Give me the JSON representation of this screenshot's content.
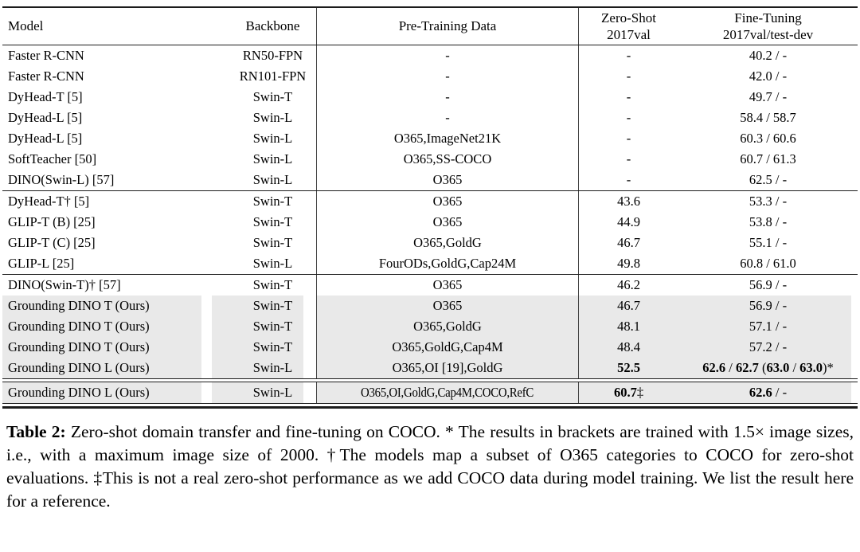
{
  "colors": {
    "row_highlight": "#e9e9e9"
  },
  "table": {
    "header": {
      "model": "Model",
      "backbone": "Backbone",
      "pretraining": "Pre-Training Data",
      "zero_shot_line1": "Zero-Shot",
      "zero_shot_line2": "2017val",
      "fine_tuning_line1": "Fine-Tuning",
      "fine_tuning_line2": "2017val/test-dev"
    },
    "groups": [
      {
        "rows": [
          {
            "model": "Faster R-CNN",
            "backbone": "RN50-FPN",
            "pretraining": "-",
            "zero_shot": [
              {
                "t": "-"
              }
            ],
            "fine_tuning": [
              {
                "t": "40.2 / -"
              }
            ],
            "highlight": false
          },
          {
            "model": "Faster R-CNN",
            "backbone": "RN101-FPN",
            "pretraining": "-",
            "zero_shot": [
              {
                "t": "-"
              }
            ],
            "fine_tuning": [
              {
                "t": "42.0 / -"
              }
            ],
            "highlight": false
          },
          {
            "model": "DyHead-T [5]",
            "backbone": "Swin-T",
            "pretraining": "-",
            "zero_shot": [
              {
                "t": "-"
              }
            ],
            "fine_tuning": [
              {
                "t": "49.7 / -"
              }
            ],
            "highlight": false
          },
          {
            "model": "DyHead-L [5]",
            "backbone": "Swin-L",
            "pretraining": "-",
            "zero_shot": [
              {
                "t": "-"
              }
            ],
            "fine_tuning": [
              {
                "t": "58.4 / 58.7"
              }
            ],
            "highlight": false
          },
          {
            "model": "DyHead-L [5]",
            "backbone": "Swin-L",
            "pretraining": "O365,ImageNet21K",
            "zero_shot": [
              {
                "t": "-"
              }
            ],
            "fine_tuning": [
              {
                "t": "60.3 / 60.6"
              }
            ],
            "highlight": false
          },
          {
            "model": "SoftTeacher [50]",
            "backbone": "Swin-L",
            "pretraining": "O365,SS-COCO",
            "zero_shot": [
              {
                "t": "-"
              }
            ],
            "fine_tuning": [
              {
                "t": "60.7 / 61.3"
              }
            ],
            "highlight": false
          },
          {
            "model": "DINO(Swin-L) [57]",
            "backbone": "Swin-L",
            "pretraining": "O365",
            "zero_shot": [
              {
                "t": "-"
              }
            ],
            "fine_tuning": [
              {
                "t": "62.5 / -"
              }
            ],
            "highlight": false
          }
        ]
      },
      {
        "rows": [
          {
            "model": "DyHead-T† [5]",
            "backbone": "Swin-T",
            "pretraining": "O365",
            "zero_shot": [
              {
                "t": "43.6"
              }
            ],
            "fine_tuning": [
              {
                "t": "53.3 / -"
              }
            ],
            "highlight": false
          },
          {
            "model": "GLIP-T (B) [25]",
            "backbone": "Swin-T",
            "pretraining": "O365",
            "zero_shot": [
              {
                "t": "44.9"
              }
            ],
            "fine_tuning": [
              {
                "t": "53.8 / -"
              }
            ],
            "highlight": false
          },
          {
            "model": "GLIP-T (C) [25]",
            "backbone": "Swin-T",
            "pretraining": "O365,GoldG",
            "zero_shot": [
              {
                "t": "46.7"
              }
            ],
            "fine_tuning": [
              {
                "t": "55.1 / -"
              }
            ],
            "highlight": false
          },
          {
            "model": "GLIP-L [25]",
            "backbone": "Swin-L",
            "pretraining": "FourODs,GoldG,Cap24M",
            "zero_shot": [
              {
                "t": "49.8"
              }
            ],
            "fine_tuning": [
              {
                "t": "60.8 / 61.0"
              }
            ],
            "highlight": false
          }
        ]
      },
      {
        "rows": [
          {
            "model": "DINO(Swin-T)† [57]",
            "backbone": "Swin-T",
            "pretraining": "O365",
            "zero_shot": [
              {
                "t": "46.2"
              }
            ],
            "fine_tuning": [
              {
                "t": "56.9 / -"
              }
            ],
            "highlight": false
          },
          {
            "model": "Grounding DINO T (Ours)",
            "backbone": "Swin-T",
            "pretraining": "O365",
            "zero_shot": [
              {
                "t": "46.7"
              }
            ],
            "fine_tuning": [
              {
                "t": "56.9 / -"
              }
            ],
            "highlight": true
          },
          {
            "model": "Grounding DINO T (Ours)",
            "backbone": "Swin-T",
            "pretraining": "O365,GoldG",
            "zero_shot": [
              {
                "t": "48.1"
              }
            ],
            "fine_tuning": [
              {
                "t": "57.1 / -"
              }
            ],
            "highlight": true
          },
          {
            "model": "Grounding DINO T (Ours)",
            "backbone": "Swin-T",
            "pretraining": "O365,GoldG,Cap4M",
            "zero_shot": [
              {
                "t": "48.4"
              }
            ],
            "fine_tuning": [
              {
                "t": "57.2 / -"
              }
            ],
            "highlight": true
          },
          {
            "model": "Grounding DINO L (Ours)",
            "backbone": "Swin-L",
            "pretraining": "O365,OI [19],GoldG",
            "zero_shot": [
              {
                "t": "52.5",
                "b": true
              }
            ],
            "fine_tuning": [
              {
                "t": "62.6",
                "b": true
              },
              {
                "t": " / "
              },
              {
                "t": "62.7",
                "b": true
              },
              {
                "t": " ("
              },
              {
                "t": "63.0",
                "b": true
              },
              {
                "t": " / "
              },
              {
                "t": "63.0",
                "b": true
              },
              {
                "t": ")*"
              }
            ],
            "highlight": true
          }
        ]
      },
      {
        "rows": [
          {
            "model": "Grounding DINO L (Ours)",
            "backbone": "Swin-L",
            "pretraining": "O365,OI,GoldG,Cap4M,COCO,RefC",
            "zero_shot": [
              {
                "t": "60.7",
                "b": true
              },
              {
                "t": "‡"
              }
            ],
            "fine_tuning": [
              {
                "t": "62.6",
                "b": true
              },
              {
                "t": " / -"
              }
            ],
            "highlight": true,
            "condensed": true
          }
        ]
      }
    ]
  },
  "caption": {
    "segments": [
      {
        "t": "Table 2:",
        "b": true
      },
      {
        "t": " Zero-shot domain transfer and fine-tuning on COCO. * The results in brackets are trained with 1.5× image sizes, i.e., with a maximum image size of 2000. †The models map a subset of O365 categories to COCO for zero-shot evaluations. ‡This is not a real zero-shot performance as we add COCO data during model training. We list the result here for a reference."
      }
    ]
  }
}
